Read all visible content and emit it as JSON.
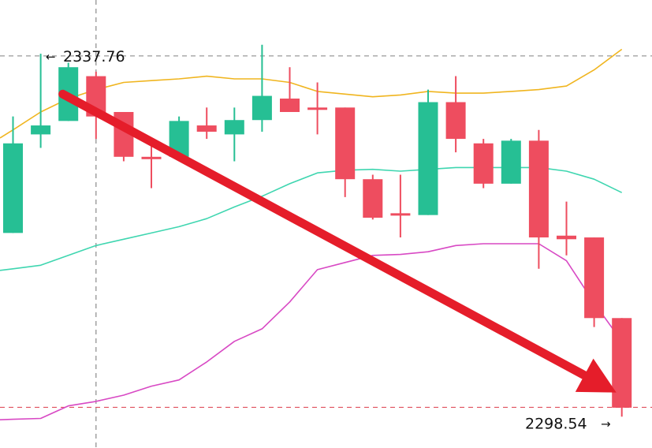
{
  "chart_data": {
    "type": "candlestick",
    "ylim": [
      2294.0,
      2344.0
    ],
    "grid": false,
    "colors": {
      "up": "#26bf94",
      "down": "#ee4d5f",
      "band_upper": "#f0b51f",
      "band_middle": "#3fd6b0",
      "band_lower": "#d849c4",
      "trend_arrow": "#e51d2a",
      "crosshair": "#8a8a8a",
      "high_line": "#9a9a9a",
      "low_line": "#e0505e"
    },
    "candles": [
      {
        "open": 2318.0,
        "close": 2328.0,
        "high": 2331.0,
        "low": 2318.0
      },
      {
        "open": 2329.0,
        "close": 2330.0,
        "high": 2338.0,
        "low": 2327.5
      },
      {
        "open": 2330.5,
        "close": 2336.5,
        "high": 2337.0,
        "low": 2330.5
      },
      {
        "open": 2335.5,
        "close": 2331.0,
        "high": 2336.0,
        "low": 2328.5
      },
      {
        "open": 2331.5,
        "close": 2326.5,
        "high": 2331.5,
        "low": 2326.0
      },
      {
        "open": 2326.5,
        "close": 2326.3,
        "high": 2328.0,
        "low": 2323.0
      },
      {
        "open": 2326.5,
        "close": 2330.5,
        "high": 2331.0,
        "low": 2326.0
      },
      {
        "open": 2330.0,
        "close": 2329.3,
        "high": 2332.0,
        "low": 2328.5
      },
      {
        "open": 2329.0,
        "close": 2330.6,
        "high": 2332.0,
        "low": 2326.0
      },
      {
        "open": 2330.6,
        "close": 2333.3,
        "high": 2339.0,
        "low": 2329.3
      },
      {
        "open": 2333.0,
        "close": 2331.5,
        "high": 2336.5,
        "low": 2331.5
      },
      {
        "open": 2332.0,
        "close": 2331.8,
        "high": 2334.8,
        "low": 2329.0
      },
      {
        "open": 2332.0,
        "close": 2324.0,
        "high": 2332.0,
        "low": 2322.0
      },
      {
        "open": 2324.0,
        "close": 2319.7,
        "high": 2324.5,
        "low": 2319.5
      },
      {
        "open": 2320.2,
        "close": 2320.0,
        "high": 2324.5,
        "low": 2317.5
      },
      {
        "open": 2320.0,
        "close": 2332.6,
        "high": 2334.0,
        "low": 2320.0
      },
      {
        "open": 2332.6,
        "close": 2328.5,
        "high": 2335.5,
        "low": 2327.0
      },
      {
        "open": 2328.0,
        "close": 2323.5,
        "high": 2328.5,
        "low": 2323.0
      },
      {
        "open": 2323.5,
        "close": 2328.3,
        "high": 2328.5,
        "low": 2323.5
      },
      {
        "open": 2328.3,
        "close": 2317.5,
        "high": 2329.5,
        "low": 2314.0
      },
      {
        "open": 2317.7,
        "close": 2317.3,
        "high": 2321.5,
        "low": 2315.5
      },
      {
        "open": 2317.5,
        "close": 2308.5,
        "high": 2317.5,
        "low": 2307.5
      },
      {
        "open": 2308.5,
        "close": 2298.5,
        "high": 2308.5,
        "low": 2297.5
      }
    ],
    "bands": {
      "upper": [
        2329.5,
        2331.5,
        2333.0,
        2334.0,
        2334.8,
        2335.0,
        2335.2,
        2335.5,
        2335.2,
        2335.2,
        2334.8,
        2333.8,
        2333.5,
        2333.2,
        2333.4,
        2333.8,
        2333.6,
        2333.6,
        2333.8,
        2334.0,
        2334.4,
        2336.2,
        2338.5
      ],
      "middle": [
        2314.0,
        2314.4,
        2315.5,
        2316.6,
        2317.3,
        2318.0,
        2318.7,
        2319.6,
        2320.9,
        2322.1,
        2323.5,
        2324.7,
        2325.0,
        2325.1,
        2324.9,
        2325.1,
        2325.3,
        2325.3,
        2325.3,
        2325.3,
        2324.9,
        2324.0,
        2322.5
      ],
      "lower": [
        2297.2,
        2297.3,
        2298.7,
        2299.2,
        2299.9,
        2300.9,
        2301.6,
        2303.6,
        2305.9,
        2307.3,
        2310.3,
        2313.9,
        2314.7,
        2315.5,
        2315.6,
        2315.9,
        2316.6,
        2316.8,
        2316.8,
        2316.8,
        2314.9,
        2310.2,
        2305.9
      ]
    },
    "high_marker": {
      "value": 2337.76,
      "label": "2337.76"
    },
    "low_marker": {
      "value": 2298.54,
      "label": "2298.54"
    },
    "crosshair_index": 3,
    "trend_arrow": {
      "from_index": 1.8,
      "from_value": 2333.5,
      "to_index": 21.8,
      "to_value": 2300.2
    }
  }
}
